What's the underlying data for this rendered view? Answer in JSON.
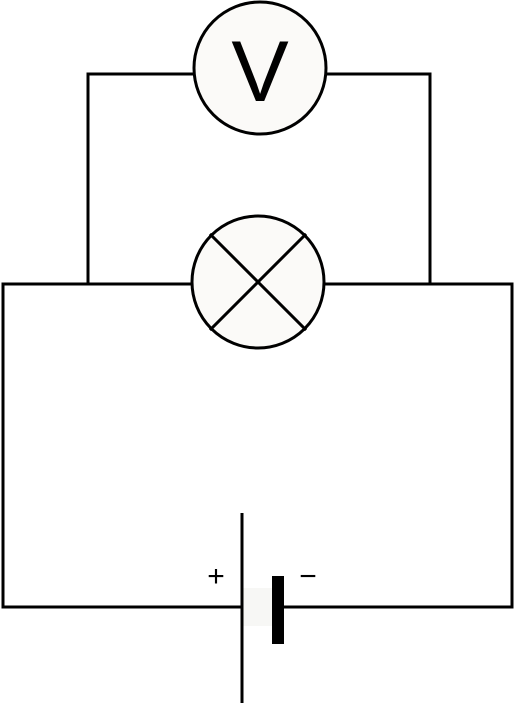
{
  "diagram": {
    "type": "circuit-schematic",
    "colors": {
      "wire": "#000000",
      "component_fill": "#fbfaf8",
      "background": "#ffffff"
    },
    "voltmeter": {
      "label": "V",
      "icon": "voltmeter-icon"
    },
    "lamp": {
      "icon": "lamp-icon"
    },
    "cell": {
      "positive_label": "+",
      "negative_label": "−",
      "icon": "cell-icon"
    }
  }
}
